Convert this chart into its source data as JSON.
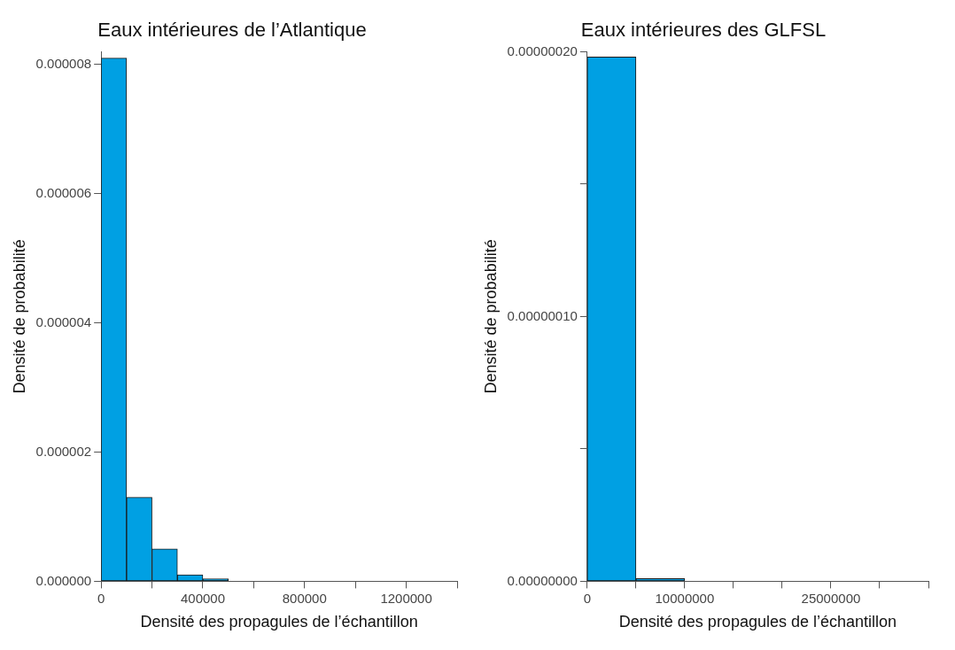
{
  "chart_data": [
    {
      "type": "histogram",
      "title": "Eaux intérieures de l’Atlantique",
      "xlabel": "Densité des propagules de l’échantillon",
      "ylabel": "Densité de probabilité",
      "color": "#00a0e3",
      "bins": [
        0,
        100000,
        200000,
        300000,
        400000,
        500000,
        600000,
        700000,
        800000,
        900000,
        1000000,
        1100000,
        1200000,
        1300000,
        1400000
      ],
      "values": [
        8.1e-06,
        1.3e-06,
        5e-07,
        1e-07,
        4e-08,
        0,
        0,
        0,
        0,
        0,
        0,
        0,
        0,
        0
      ],
      "xlim": [
        0,
        1400000
      ],
      "xticks": [
        0,
        {
          "value": 200000,
          "label": null
        },
        400000,
        {
          "value": 600000,
          "label": null
        },
        800000,
        {
          "value": 1000000,
          "label": null
        },
        1200000,
        {
          "value": 1400000,
          "label": null
        }
      ],
      "ylim": [
        0,
        8.2e-06
      ],
      "yticks": [
        {
          "value": 0,
          "label": "0.000000"
        },
        {
          "value": 2e-06,
          "label": "0.000002"
        },
        {
          "value": 4e-06,
          "label": "0.000004"
        },
        {
          "value": 6e-06,
          "label": "0.000006"
        },
        {
          "value": 8e-06,
          "label": "0.000008"
        }
      ],
      "grid": false,
      "legend": false
    },
    {
      "type": "histogram",
      "title": "Eaux intérieures des GLFSL",
      "xlabel": "Densité des propagules de l’échantillon",
      "ylabel": "Densité de probabilité",
      "color": "#00a0e3",
      "bins": [
        0,
        5000000,
        10000000,
        15000000,
        20000000,
        25000000,
        30000000,
        35000000
      ],
      "values": [
        1.98e-07,
        1e-09,
        0,
        0,
        0,
        0,
        0
      ],
      "xlim": [
        0,
        35000000
      ],
      "xticks": [
        0,
        {
          "value": 5000000,
          "label": null
        },
        10000000,
        {
          "value": 15000000,
          "label": null
        },
        {
          "value": 20000000,
          "label": null
        },
        25000000,
        {
          "value": 30000000,
          "label": null
        },
        {
          "value": 35000000,
          "label": null
        }
      ],
      "ylim": [
        0,
        2e-07
      ],
      "yticks": [
        {
          "value": 0,
          "label": "0.00000000"
        },
        {
          "value": 5e-08,
          "label": null
        },
        {
          "value": 1e-07,
          "label": "0.00000010"
        },
        {
          "value": 1.5e-07,
          "label": null
        },
        {
          "value": 2e-07,
          "label": "0.00000020"
        }
      ],
      "grid": false,
      "legend": false
    }
  ]
}
